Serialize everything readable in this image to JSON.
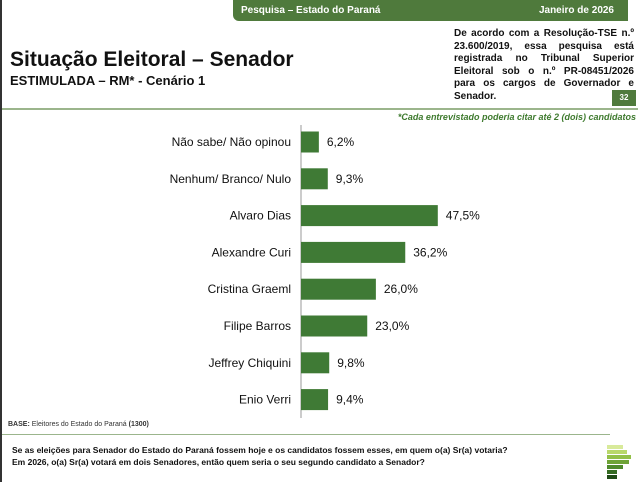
{
  "header": {
    "survey": "Pesquisa – Estado do Paraná",
    "date": "Janeiro de 2026"
  },
  "title": "Situação Eleitoral – Senador",
  "subtitle": "ESTIMULADA – RM* - Cenário 1",
  "legal_note": "De acordo com a Resolução-TSE n.º 23.600/2019, essa pesquisa está registrada no Tribunal Superior Eleitoral sob o n.º PR-08451/2026 para os cargos de Governador e Senador.",
  "page_number": "32",
  "footnote": "*Cada entrevistado poderia citar até 2 (dois) candidatos",
  "base_label": "BASE:",
  "base_text": " Eleitores do Estado do Paraná ",
  "base_n": "(1300)",
  "question_1": "Se as eleições para Senador do Estado do Paraná fossem hoje e os candidatos fossem esses, em quem o(a) Sr(a) votaria?",
  "question_2": "Em 2026, o(a) Sr(a) votará em dois Senadores, então quem seria o seu segundo candidato a Senador?",
  "colors": {
    "bar": "#3f7a35",
    "accent": "#4f7a3c"
  },
  "chart_data": {
    "type": "bar",
    "orientation": "horizontal",
    "categories": [
      "Não sabe/ Não opinou",
      "Nenhum/ Branco/ Nulo",
      "Alvaro Dias",
      "Alexandre Curi",
      "Cristina Graeml",
      "Filipe Barros",
      "Jeffrey Chiquini",
      "Enio Verri"
    ],
    "values": [
      6.2,
      9.3,
      47.5,
      36.2,
      26.0,
      23.0,
      9.8,
      9.4
    ],
    "labels": [
      "6,2%",
      "9,3%",
      "47,5%",
      "36,2%",
      "26,0%",
      "23,0%",
      "9,8%",
      "9,4%"
    ],
    "unit": "%",
    "xlim": [
      0,
      100
    ],
    "grid": false
  }
}
